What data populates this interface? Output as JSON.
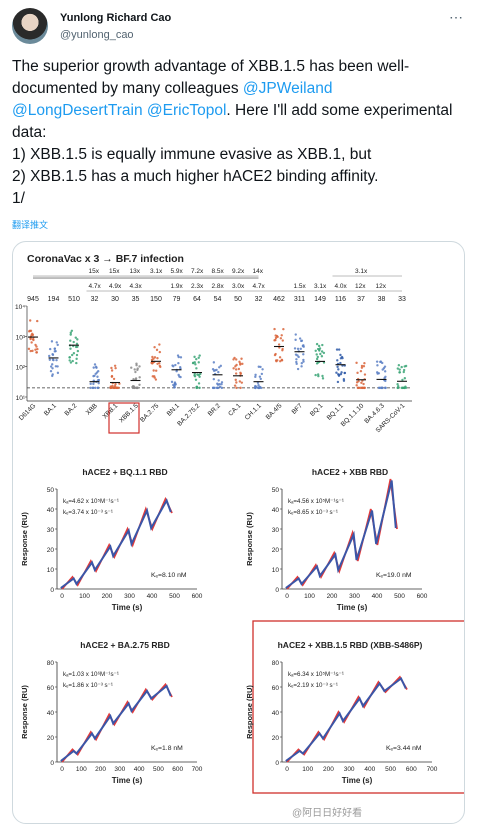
{
  "user": {
    "name": "Yunlong Richard Cao",
    "handle": "@yunlong_cao"
  },
  "tweet": {
    "p1": "The superior growth advantage of XBB.1.5 has been well-documented by many colleagues ",
    "m1": "@JPWeiland",
    "m2": "@LongDesertTrain",
    "m3": "@EricTopol",
    "p2": ". Here I'll add some experimental data:",
    "l1": "1)  XBB.1.5 is equally immune evasive as XBB.1, but",
    "l2": "2) XBB.1.5 has a much higher hACE2 binding affinity.",
    "l3": "1/",
    "translate": "翻译推文"
  },
  "fig_top": {
    "title": "CoronaVac x 3 → BF.7 infection",
    "fold": [
      "15x",
      "15x",
      "13x",
      "3.1x",
      "5.9x",
      "7.2x",
      "8.5x",
      "9.2x",
      "14x",
      "4.7x",
      "4.9x",
      "4.3x",
      "1.9x",
      "2.3x",
      "2.8x",
      "3.0x",
      "4.7x",
      "1.5x",
      "3.1x",
      "4.0x",
      "12x",
      "12x",
      "3.1x"
    ],
    "titers": [
      "945",
      "194",
      "510",
      "32",
      "30",
      "35",
      "150",
      "79",
      "64",
      "54",
      "50",
      "32",
      "462",
      "311",
      "149",
      "116",
      "37",
      "38",
      "33"
    ],
    "variants": [
      "D614G",
      "BA.1",
      "BA.2",
      "XBB",
      "XBB.1",
      "XBB.1.5",
      "BA.2.75",
      "BN.1",
      "BA.2.75.2",
      "BR.2",
      "CA.1",
      "CH.1.1",
      "BA.4/5",
      "BF7",
      "BQ.1",
      "BQ.1.1",
      "BQ.1.1.10",
      "BA.4.6.3",
      "SARS-CoV-1"
    ],
    "yticks": [
      "10⁴",
      "10³",
      "10²",
      "10¹"
    ]
  },
  "spr": {
    "ylabel": "Response (RU)",
    "xlabel": "Time (s)",
    "xticks": [
      "0",
      "100",
      "200",
      "300",
      "400",
      "500",
      "600",
      "700"
    ],
    "panels": [
      {
        "title": "hACE2 + BQ.1.1 RBD",
        "ka": "kₐ=4.62 x 10⁵M⁻¹s⁻¹",
        "kd": "kₑ=3.74 x 10⁻³ s⁻¹",
        "KD": "Kₑ=8.10 nM",
        "yticks": [
          "0",
          "10",
          "20",
          "30",
          "40",
          "50"
        ]
      },
      {
        "title": "hACE2 + XBB RBD",
        "ka": "kₐ=4.56 x 10⁵M⁻¹s⁻¹",
        "kd": "kₑ=8.65 x 10⁻³ s⁻¹",
        "KD": "Kₑ=19.0 nM",
        "yticks": [
          "0",
          "10",
          "20",
          "30",
          "40",
          "50"
        ]
      },
      {
        "title": "hACE2 + BA.2.75 RBD",
        "ka": "kₐ=1.03 x 10⁶M⁻¹s⁻¹",
        "kd": "kₑ=1.86 x 10⁻³ s⁻¹",
        "KD": "Kₑ=1.8 nM",
        "yticks": [
          "0",
          "20",
          "40",
          "60",
          "80"
        ]
      },
      {
        "title": "hACE2 + XBB.1.5 RBD (XBB-S486P)",
        "ka": "kₐ=6.34 x 10⁵M⁻¹s⁻¹",
        "kd": "kₑ=2.19 x 10⁻³ s⁻¹",
        "KD": "Kₑ=3.44 nM",
        "yticks": [
          "0",
          "20",
          "40",
          "60",
          "80"
        ]
      }
    ]
  },
  "watermark": "@阿日日好好看",
  "colors": {
    "link": "#1d9bf0",
    "highlight": "#d0302b",
    "fit": "#e23a3a",
    "curve": "#3a56a8"
  }
}
